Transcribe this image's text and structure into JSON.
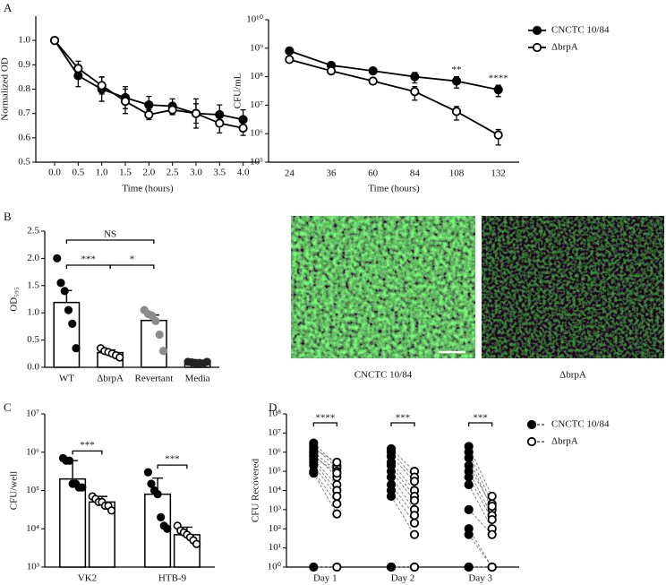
{
  "panel_labels": [
    "A",
    "B",
    "C",
    "D"
  ],
  "images": [
    {
      "caption": "CNCTC 10/84"
    },
    {
      "caption": "ΔbrpA"
    }
  ],
  "chart_data": [
    {
      "type": "line",
      "ylabel": "Normalized OD",
      "xlabel": "Time (hours)",
      "x": [
        0,
        0.5,
        1,
        1.5,
        2,
        2.5,
        3,
        3.5,
        4
      ],
      "xlim": [
        -0.4,
        4.35
      ],
      "xticks": [
        {
          "value": 0,
          "label": "0.0"
        },
        0.5,
        {
          "value": 1,
          "label": "1.0"
        },
        1.5,
        {
          "value": 2,
          "label": "2.0"
        },
        2.5,
        {
          "value": 3,
          "label": "3.0"
        },
        3.5,
        {
          "value": 4,
          "label": "4.0"
        }
      ],
      "ylim": [
        0.5,
        1.1
      ],
      "yticks": [
        0.5,
        0.6,
        0.7,
        0.8,
        0.9,
        {
          "value": 1,
          "label": "1.0"
        }
      ],
      "series": [
        {
          "marker": "filled",
          "color": "#000000",
          "values": [
            1.0,
            0.855,
            0.8,
            0.765,
            0.735,
            0.73,
            0.7,
            0.695,
            0.675
          ],
          "errors": [
            0.005,
            0.045,
            0.05,
            0.045,
            0.035,
            0.03,
            0.06,
            0.04,
            0.04
          ]
        },
        {
          "marker": "open",
          "color": "#000000",
          "values": [
            1.0,
            0.885,
            0.815,
            0.75,
            0.695,
            0.715,
            0.7,
            0.66,
            0.64
          ],
          "errors": [
            0.005,
            0.03,
            0.035,
            0.05,
            0.02,
            0.02,
            0.04,
            0.04,
            0.03
          ]
        }
      ]
    },
    {
      "type": "line",
      "log": true,
      "ylabel": "CFU/mL",
      "xlabel": "Time (hours)",
      "categories": [
        "24",
        "36",
        "60",
        "84",
        "108",
        "132"
      ],
      "ylim": [
        100000,
        10000000000
      ],
      "yticks": [
        {
          "value": 100000,
          "label": "10⁵"
        },
        {
          "value": 1000000,
          "label": "10⁶"
        },
        {
          "value": 10000000,
          "label": "10⁷"
        },
        {
          "value": 100000000,
          "label": "10⁸"
        },
        {
          "value": 1000000000,
          "label": "10⁹"
        },
        {
          "value": 10000000000,
          "label": "10¹⁰"
        }
      ],
      "legend": "right",
      "series": [
        {
          "name": "CNCTC 10/84",
          "marker": "filled",
          "color": "#000000",
          "values": [
            800000000,
            250000000,
            160000000,
            100000000,
            70000000,
            35000000
          ],
          "errors": [
            100000000,
            50000000,
            30000000,
            40000000,
            30000000,
            15000000
          ]
        },
        {
          "name": "ΔbrpA",
          "marker": "open",
          "color": "#000000",
          "values": [
            400000000,
            160000000,
            70000000,
            30000000,
            6000000,
            900000
          ],
          "errors": [
            50000000,
            30000000,
            15000000,
            15000000,
            3000000,
            500000
          ]
        }
      ],
      "annotations": [
        {
          "text": "**",
          "x": "108"
        },
        {
          "text": "****",
          "x": "132"
        }
      ]
    },
    {
      "type": "bar",
      "ylabel": "OD₅₉₅",
      "categories": [
        "WT",
        "ΔbrpA",
        "Revertant",
        "Media"
      ],
      "values": [
        1.19,
        0.27,
        0.86,
        0.08
      ],
      "errors": [
        0.22,
        0.05,
        0.1,
        0.02
      ],
      "fill": "#ffffff",
      "points": [
        [
          2.0,
          1.55,
          1.4,
          1.05,
          0.8,
          0.35
        ],
        [
          0.35,
          0.3,
          0.28,
          0.25,
          0.22,
          0.18
        ],
        [
          1.05,
          0.98,
          0.95,
          0.85,
          0.6,
          0.3
        ],
        [
          0.1,
          0.09,
          0.08,
          0.08,
          0.07,
          0.1
        ]
      ],
      "point_fill": [
        "#000000",
        "#ffffff",
        "#8c8c8c",
        "#222222"
      ],
      "ylim": [
        0,
        2.5
      ],
      "yticks": [
        {
          "value": 0,
          "label": "0.0"
        },
        0.5,
        {
          "value": 1,
          "label": "1.0"
        },
        1.5,
        {
          "value": 2,
          "label": "2.0"
        },
        2.5
      ],
      "comparisons": [
        {
          "pair": [
            "WT",
            "ΔbrpA"
          ],
          "label": "***"
        },
        {
          "pair": [
            "ΔbrpA",
            "Revertant"
          ],
          "label": "*"
        },
        {
          "pair": [
            "WT",
            "Revertant"
          ],
          "label": "NS"
        }
      ]
    },
    {
      "type": "bar",
      "log": true,
      "ylabel": "CFU/well",
      "categories": [
        "VK2",
        "HTB-9"
      ],
      "ylim": [
        1000,
        10000000
      ],
      "yticks": [
        {
          "value": 1000,
          "label": "10³"
        },
        {
          "value": 10000,
          "label": "10⁴"
        },
        {
          "value": 100000,
          "label": "10⁵"
        },
        {
          "value": 1000000,
          "label": "10⁶"
        },
        {
          "value": 10000000,
          "label": "10⁷"
        }
      ],
      "series": [
        {
          "fill": "#ffffff",
          "point_fill": "#000000",
          "values": [
            200000,
            80000
          ],
          "errors": [
            400000,
            130000
          ],
          "points": [
            [
              700000,
              600000,
              600000,
              150000,
              150000,
              120000,
              120000
            ],
            [
              300000,
              150000,
              100000,
              80000,
              20000,
              12000,
              10000
            ]
          ]
        },
        {
          "fill": "#ffffff",
          "point_fill": "#ffffff",
          "values": [
            50000,
            7000
          ],
          "errors": [
            20000,
            4000
          ],
          "points": [
            [
              70000,
              60000,
              50000,
              50000,
              40000,
              40000,
              30000
            ],
            [
              12000,
              9000,
              8000,
              7000,
              6000,
              5000,
              4000
            ]
          ]
        }
      ],
      "comparisons": [
        {
          "category": "VK2",
          "label": "***"
        },
        {
          "category": "HTB-9",
          "label": "***"
        }
      ]
    },
    {
      "type": "scatter",
      "log": true,
      "ylabel": "CFU Recovered",
      "categories": [
        "Day 1",
        "Day 2",
        "Day 3"
      ],
      "ylim": [
        1,
        100000000
      ],
      "yticks": [
        {
          "value": 1,
          "label": "10⁰"
        },
        {
          "value": 10,
          "label": "10¹"
        },
        {
          "value": 100,
          "label": "10²"
        },
        {
          "value": 1000,
          "label": "10³"
        },
        {
          "value": 10000,
          "label": "10⁴"
        },
        {
          "value": 100000,
          "label": "10⁵"
        },
        {
          "value": 1000000,
          "label": "10⁶"
        },
        {
          "value": 10000000,
          "label": "10⁷"
        },
        {
          "value": 100000000,
          "label": "10⁸"
        }
      ],
      "legend": "right",
      "series": [
        {
          "name": "CNCTC 10/84",
          "marker": "filled",
          "color": "#000000",
          "values": [
            [
              3000000,
              2000000,
              1500000,
              1000000,
              800000,
              600000,
              400000,
              300000,
              200000,
              100000,
              80000,
              1
            ],
            [
              1500000,
              1000000,
              600000,
              300000,
              200000,
              100000,
              50000,
              20000,
              10000,
              5000,
              1,
              1
            ],
            [
              2000000,
              1000000,
              500000,
              200000,
              100000,
              50000,
              20000,
              1000,
              100,
              50,
              1,
              1
            ]
          ]
        },
        {
          "name": "ΔbrpA",
          "marker": "open",
          "color": "#000000",
          "values": [
            [
              200000,
              150000,
              300000,
              100000,
              50000,
              80000,
              20000,
              10000,
              5000,
              2000,
              600,
              1
            ],
            [
              100000,
              50000,
              30000,
              10000,
              5000,
              3000,
              1000,
              500,
              200,
              50,
              1,
              1
            ],
            [
              5000,
              2000,
              1000,
              1500,
              500,
              300,
              100,
              50,
              1,
              1,
              1,
              1
            ]
          ]
        }
      ],
      "comparisons": [
        "****",
        "***",
        "***"
      ]
    }
  ]
}
